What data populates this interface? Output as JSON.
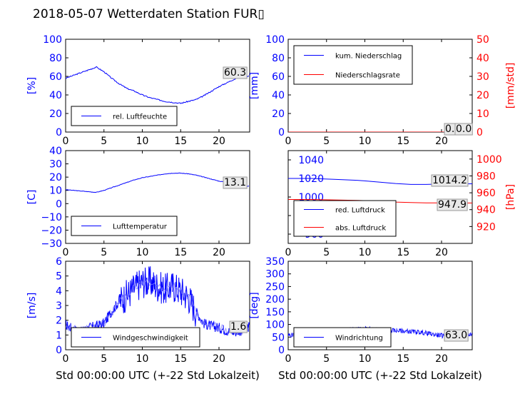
{
  "page": {
    "title": "2018-05-07 Wetterdaten Station FUR▯"
  },
  "colors": {
    "blue": "#0000ff",
    "red": "#ff0000",
    "light_blue": "#8080ff"
  },
  "chart_data": [
    {
      "id": "humidity",
      "type": "line",
      "ylabel": "[%]",
      "xlabel": "",
      "xlim": [
        0,
        24
      ],
      "ylim": [
        0,
        100
      ],
      "xticks": [
        "0",
        "5",
        "10",
        "15",
        "20"
      ],
      "yticks": [
        "0",
        "20",
        "40",
        "60",
        "80",
        "100"
      ],
      "legend": {
        "position": "lower-left",
        "entries": [
          "rel. Luftfeuchte"
        ]
      },
      "series": [
        {
          "name": "rel. Luftfeuchte",
          "color": "#0000ff",
          "x": [
            0,
            1,
            2,
            3,
            4,
            5,
            6,
            7,
            8,
            9,
            10,
            11,
            12,
            13,
            14,
            15,
            16,
            17,
            18,
            19,
            20,
            21,
            22,
            23,
            24
          ],
          "y": [
            58,
            61,
            64,
            67,
            70,
            65,
            58,
            52,
            47,
            44,
            40,
            37,
            35,
            33,
            32,
            31,
            33,
            35,
            39,
            44,
            49,
            53,
            57,
            60,
            60.3
          ]
        }
      ],
      "annotations": [
        {
          "text": "60.3"
        }
      ]
    },
    {
      "id": "precipitation",
      "type": "line",
      "ylabel": "[mm]",
      "ylabel2": "[mm/std]",
      "xlim": [
        0,
        24
      ],
      "ylim": [
        0,
        100
      ],
      "ylim2": [
        0,
        50
      ],
      "xticks": [
        "0",
        "5",
        "10",
        "15",
        "20"
      ],
      "yticks": [
        "0",
        "20",
        "40",
        "60",
        "80",
        "100"
      ],
      "yticks2": [
        "0",
        "10",
        "20",
        "30",
        "40",
        "50"
      ],
      "legend": {
        "position": "upper-left",
        "entries": [
          "kum. Niederschlag",
          "Niederschlagsrate"
        ]
      },
      "series": [
        {
          "name": "kum. Niederschlag",
          "color": "#0000ff",
          "x": [
            0,
            24
          ],
          "y": [
            0,
            0
          ]
        },
        {
          "name": "Niederschlagsrate",
          "color": "#ff0000",
          "x": [
            0,
            24
          ],
          "y": [
            0,
            0
          ]
        }
      ],
      "annotations": [
        {
          "text": "0.0"
        },
        {
          "text": "0.0"
        }
      ]
    },
    {
      "id": "temperature",
      "type": "line",
      "ylabel": "[C]",
      "xlim": [
        0,
        24
      ],
      "ylim": [
        -30,
        40
      ],
      "xticks": [
        "0",
        "5",
        "10",
        "15",
        "20"
      ],
      "yticks": [
        "−30",
        "−20",
        "−10",
        "0",
        "10",
        "20",
        "30",
        "40"
      ],
      "legend": {
        "position": "lower-left",
        "entries": [
          "Lufttemperatur"
        ]
      },
      "series": [
        {
          "name": "Lufttemperatur",
          "color": "#0000ff",
          "x": [
            0,
            1,
            2,
            3,
            4,
            5,
            6,
            7,
            8,
            9,
            10,
            11,
            12,
            13,
            14,
            15,
            16,
            17,
            18,
            19,
            20,
            21,
            22,
            23,
            24
          ],
          "y": [
            10.5,
            10,
            9.5,
            9,
            8.5,
            10,
            12,
            14,
            16,
            18,
            19.5,
            20.5,
            21.5,
            22.5,
            23,
            23,
            22.5,
            21.5,
            20,
            18.5,
            17,
            16,
            14.5,
            13.5,
            13.1
          ]
        }
      ],
      "annotations": [
        {
          "text": "13.1"
        }
      ]
    },
    {
      "id": "pressure",
      "type": "line",
      "ylabel2": "[hPa]",
      "xlim": [
        0,
        24
      ],
      "ylim": [
        950,
        1050
      ],
      "ylim2": [
        900,
        1010
      ],
      "xticks": [
        "0",
        "5",
        "10",
        "15",
        "20"
      ],
      "yticks": [
        "960",
        "980",
        "1000",
        "1020",
        "1040"
      ],
      "yticks2": [
        "920",
        "940",
        "960",
        "980",
        "1000"
      ],
      "legend": {
        "position": "lower-left",
        "entries": [
          "red. Luftdruck",
          "abs. Luftdruck"
        ]
      },
      "series": [
        {
          "name": "red. Luftdruck",
          "color": "#0000ff",
          "x": [
            0,
            3,
            6,
            9,
            12,
            14,
            16,
            18,
            20,
            22,
            24
          ],
          "y": [
            1020,
            1020,
            1019,
            1018,
            1016,
            1014.5,
            1013.5,
            1013.5,
            1014,
            1014,
            1014.2
          ]
        },
        {
          "name": "abs. Luftdruck",
          "color": "#ff0000",
          "x": [
            0,
            3,
            6,
            9,
            12,
            14,
            16,
            18,
            20,
            22,
            24
          ],
          "y": [
            952,
            952,
            951.5,
            951,
            950,
            949,
            948.5,
            948,
            948,
            947.9,
            947.9
          ]
        }
      ],
      "annotations": [
        {
          "text": "1014.2"
        },
        {
          "text": "947.9"
        }
      ]
    },
    {
      "id": "wind-speed",
      "type": "line",
      "ylabel": "[m/s]",
      "xlabel": "Std 00:00:00 UTC (+-22 Std Lokalzeit)",
      "xlim": [
        0,
        24
      ],
      "ylim": [
        0,
        6
      ],
      "xticks": [
        "0",
        "5",
        "10",
        "15",
        "20"
      ],
      "yticks": [
        "0",
        "1",
        "2",
        "3",
        "4",
        "5",
        "6"
      ],
      "legend": {
        "position": "lower-left",
        "entries": [
          "Windgeschwindigkeit"
        ]
      },
      "series": [
        {
          "name": "Windgeschwindigkeit",
          "color": "#0000ff",
          "x": [
            0,
            1,
            2,
            3,
            4,
            5,
            6,
            7,
            8,
            9,
            10,
            11,
            12,
            13,
            14,
            15,
            16,
            17,
            18,
            19,
            20,
            21,
            22,
            23,
            24
          ],
          "y": [
            1.7,
            1.4,
            1.2,
            1.5,
            1.6,
            1.8,
            2.6,
            3.3,
            3.7,
            4.2,
            4.6,
            4.6,
            4.3,
            4.1,
            4.3,
            4.0,
            3.6,
            2.6,
            1.8,
            1.6,
            1.5,
            1.3,
            1.2,
            1.3,
            1.6
          ]
        }
      ],
      "annotations": [
        {
          "text": "1.6"
        }
      ]
    },
    {
      "id": "wind-direction",
      "type": "line",
      "ylabel": "[deg]",
      "xlabel": "Std 00:00:00 UTC (+-22 Std Lokalzeit)",
      "xlim": [
        0,
        24
      ],
      "ylim": [
        0,
        360
      ],
      "xticks": [
        "0",
        "5",
        "10",
        "15",
        "20"
      ],
      "yticks": [
        "0",
        "50",
        "100",
        "150",
        "200",
        "250",
        "300",
        "350"
      ],
      "legend": {
        "position": "lower-left",
        "entries": [
          "Windrichtung"
        ]
      },
      "series": [
        {
          "name": "Windrichtung",
          "color": "#0000ff",
          "x": [
            0,
            1,
            2,
            3,
            4,
            5,
            6,
            7,
            8,
            9,
            10,
            11,
            12,
            13,
            14,
            15,
            16,
            17,
            18,
            19,
            20,
            21,
            22,
            23,
            24
          ],
          "y": [
            58,
            62,
            65,
            70,
            72,
            74,
            76,
            80,
            82,
            84,
            85,
            83,
            82,
            80,
            78,
            76,
            74,
            72,
            68,
            62,
            58,
            55,
            52,
            58,
            63
          ]
        }
      ],
      "annotations": [
        {
          "text": "63.0"
        }
      ]
    }
  ]
}
